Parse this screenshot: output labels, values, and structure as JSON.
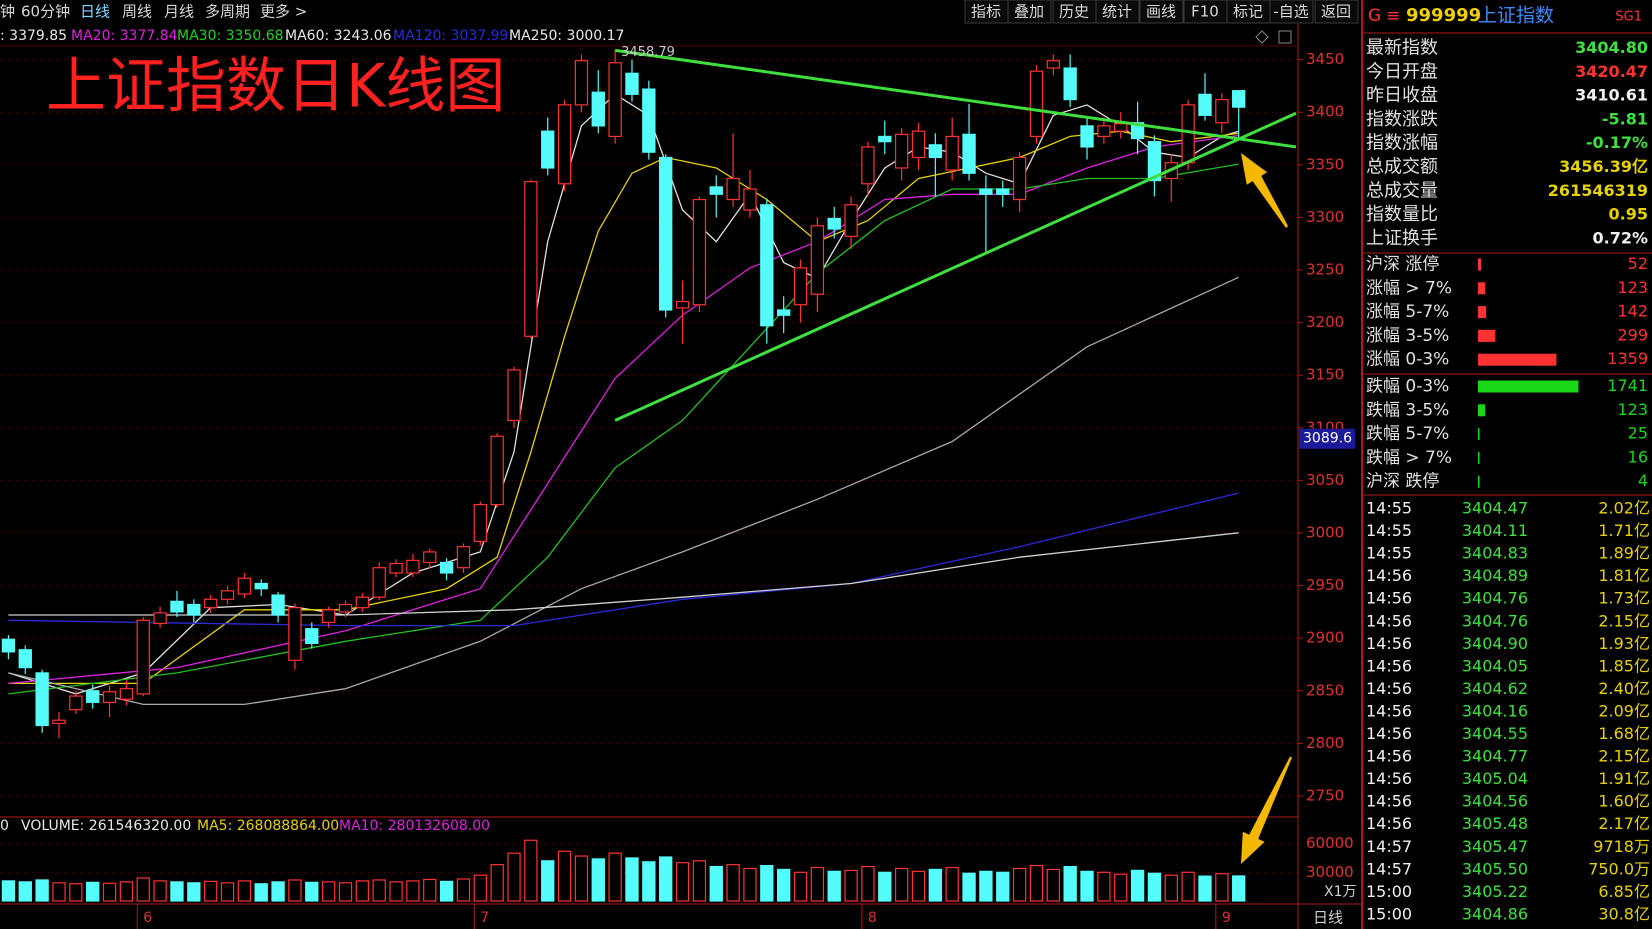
{
  "toolbar": {
    "left": [
      "钟",
      "60分钟",
      "日线",
      "周线",
      "月线",
      "多周期",
      "更多 >"
    ],
    "right": [
      "指标",
      "叠加",
      "历史",
      "统计",
      "画线",
      "F10",
      "标记",
      "-自选",
      "返回"
    ]
  },
  "chart_data": {
    "type": "candlestick",
    "title": "上证指数日K线图",
    "ma_legend": [
      {
        "text": ": 3379.85",
        "color": "#e8e8e8"
      },
      {
        "text": "MA20: 3377.84",
        "color": "#e020e0"
      },
      {
        "text": "MA30: 3350.68",
        "color": "#20d020"
      },
      {
        "text": "MA60: 3243.06",
        "color": "#e8e8e8"
      },
      {
        "text": "MA120: 3037.99",
        "color": "#2a2ad8"
      },
      {
        "text": "MA250: 3000.17",
        "color": "#e8e8e8"
      }
    ],
    "categories": [
      null,
      null,
      null,
      null,
      null,
      null,
      null,
      null,
      "6",
      null,
      null,
      null,
      null,
      null,
      null,
      null,
      null,
      null,
      null,
      null,
      null,
      null,
      null,
      null,
      null,
      null,
      null,
      null,
      "7",
      null,
      null,
      null,
      null,
      null,
      null,
      null,
      null,
      null,
      null,
      null,
      null,
      null,
      null,
      null,
      null,
      null,
      null,
      null,
      null,
      null,
      null,
      "8",
      null,
      null,
      null,
      null,
      null,
      null,
      null,
      null,
      null,
      null,
      null,
      null,
      null,
      null,
      null,
      null,
      null,
      null,
      null,
      null,
      "9",
      null
    ],
    "open": [
      2899,
      2889,
      2867,
      2819,
      2832,
      2850,
      2839,
      2842,
      2847,
      2914,
      2935,
      2932,
      2929,
      2937,
      2942,
      2952,
      2941,
      2879,
      2909,
      2915,
      2925,
      2929,
      2939,
      2962,
      2962,
      2972,
      2972,
      2967,
      2992,
      3027,
      3107,
      3187,
      3382,
      3332,
      3407,
      3419,
      3377,
      3437,
      3422,
      3357,
      3214,
      3217,
      3329,
      3317,
      3307,
      3312,
      3212,
      3217,
      3227,
      3299,
      3282,
      3332,
      3377,
      3347,
      3357,
      3369,
      3345,
      3379,
      3327,
      3327,
      3317,
      3377,
      3442,
      3442,
      3387,
      3377,
      3382,
      3390,
      3372,
      3337,
      3352,
      3417,
      3390,
      3420.47
    ],
    "high": [
      2903,
      2893,
      2870,
      2830,
      2850,
      2856,
      2855,
      2860,
      2920,
      2930,
      2945,
      2937,
      2941,
      2950,
      2962,
      2956,
      2944,
      2933,
      2915,
      2930,
      2936,
      2943,
      2972,
      2975,
      2980,
      2985,
      2976,
      2990,
      3030,
      3095,
      3158,
      3336,
      3395,
      3412,
      3455,
      3440,
      3458.79,
      3450,
      3430,
      3360,
      3240,
      3320,
      3340,
      3380,
      3345,
      3318,
      3225,
      3260,
      3300,
      3310,
      3320,
      3372,
      3392,
      3385,
      3390,
      3380,
      3395,
      3408,
      3340,
      3335,
      3362,
      3445,
      3455,
      3455,
      3395,
      3395,
      3400,
      3410,
      3378,
      3360,
      3412,
      3437,
      3418,
      3421
    ],
    "low": [
      2880,
      2866,
      2810,
      2805,
      2828,
      2833,
      2825,
      2836,
      2845,
      2910,
      2920,
      2915,
      2924,
      2932,
      2938,
      2940,
      2915,
      2870,
      2890,
      2910,
      2920,
      2925,
      2936,
      2958,
      2958,
      2966,
      2955,
      2962,
      2988,
      3024,
      3100,
      3185,
      3340,
      3325,
      3400,
      3380,
      3370,
      3410,
      3355,
      3205,
      3180,
      3210,
      3300,
      3310,
      3300,
      3180,
      3190,
      3200,
      3210,
      3280,
      3270,
      3320,
      3360,
      3335,
      3345,
      3320,
      3335,
      3335,
      3265,
      3310,
      3305,
      3370,
      3435,
      3405,
      3355,
      3370,
      3375,
      3360,
      3320,
      3315,
      3345,
      3392,
      3380,
      3376
    ],
    "close": [
      2887,
      2872,
      2817,
      2822,
      2845,
      2839,
      2849,
      2852,
      2917,
      2924,
      2925,
      2922,
      2937,
      2945,
      2957,
      2947,
      2922,
      2929,
      2895,
      2927,
      2932,
      2939,
      2967,
      2971,
      2974,
      2982,
      2962,
      2987,
      3027,
      3092,
      3155,
      3334,
      3347,
      3407,
      3449,
      3387,
      3447,
      3417,
      3362,
      3212,
      3220,
      3317,
      3322,
      3337,
      3327,
      3197,
      3207,
      3252,
      3292,
      3289,
      3312,
      3367,
      3372,
      3379,
      3382,
      3357,
      3377,
      3342,
      3322,
      3322,
      3357,
      3439,
      3449,
      3412,
      3367,
      3387,
      3389,
      3375,
      3335,
      3352,
      3407,
      3397,
      3412,
      3404.8
    ],
    "up_color": "#ff3232",
    "down_color": "#54fcfc",
    "ylim": [
      2730,
      3462
    ],
    "yticks": [
      2750,
      2800,
      2850,
      2900,
      2950,
      3000,
      3050,
      3100,
      3150,
      3200,
      3250,
      3300,
      3350,
      3400,
      3450
    ],
    "grid": true,
    "cursor_value": 3089.6,
    "lines": [
      {
        "color": "#e0e0e0",
        "x": [
          0,
          4,
          8,
          12,
          16,
          20,
          24,
          28,
          30,
          32,
          34,
          36,
          38,
          40,
          42,
          44,
          46,
          48,
          50,
          52,
          54,
          56,
          58,
          60,
          62,
          64,
          66,
          68,
          70,
          72,
          73
        ],
        "values": [
          2867,
          2847,
          2867,
          2929,
          2932,
          2922,
          2962,
          2982,
          3077,
          3277,
          3387,
          3417,
          3397,
          3307,
          3277,
          3322,
          3257,
          3242,
          3297,
          3347,
          3367,
          3362,
          3342,
          3332,
          3397,
          3407,
          3387,
          3362,
          3357,
          3377,
          3382
        ]
      },
      {
        "color": "#e6d200",
        "x": [
          0,
          8,
          14,
          20,
          26,
          29,
          31,
          33,
          35,
          37,
          39,
          42,
          45,
          48,
          51,
          54,
          57,
          60,
          63,
          66,
          69,
          73
        ],
        "values": [
          2857,
          2857,
          2927,
          2927,
          2947,
          2977,
          3077,
          3187,
          3287,
          3342,
          3357,
          3347,
          3317,
          3277,
          3297,
          3337,
          3347,
          3357,
          3377,
          3382,
          3372,
          3379.85
        ]
      },
      {
        "color": "#e020e0",
        "x": [
          0,
          10,
          20,
          28,
          32,
          36,
          40,
          44,
          48,
          52,
          56,
          60,
          64,
          68,
          73
        ],
        "values": [
          2857,
          2872,
          2907,
          2947,
          3047,
          3147,
          3207,
          3252,
          3277,
          3317,
          3322,
          3322,
          3347,
          3367,
          3377.84
        ]
      },
      {
        "color": "#20c020",
        "x": [
          0,
          10,
          20,
          28,
          32,
          36,
          40,
          44,
          48,
          52,
          56,
          60,
          64,
          68,
          73
        ],
        "values": [
          2847,
          2867,
          2897,
          2917,
          2977,
          3062,
          3107,
          3177,
          3247,
          3297,
          3327,
          3327,
          3337,
          3337,
          3350.68
        ]
      },
      {
        "color": "#a8a8a8",
        "x": [
          0,
          8,
          14,
          20,
          28,
          34,
          40,
          48,
          56,
          64,
          73
        ],
        "values": [
          2867,
          2837,
          2837,
          2852,
          2897,
          2947,
          2982,
          3032,
          3087,
          3177,
          3243.06
        ]
      },
      {
        "color": "#2a2ad8",
        "x": [
          0,
          20,
          30,
          40,
          50,
          60,
          73
        ],
        "values": [
          2917,
          2912,
          2912,
          2937,
          2952,
          2987,
          3037.99
        ]
      },
      {
        "color": "#d0d0d0",
        "x": [
          0,
          20,
          30,
          40,
          50,
          60,
          73
        ],
        "values": [
          2922,
          2922,
          2927,
          2939,
          2952,
          2977,
          3000.17
        ]
      }
    ],
    "trendlines": [
      {
        "color": "#3ee03e",
        "x": [
          36,
          76.4
        ],
        "values": [
          3458.79,
          3367
        ]
      },
      {
        "color": "#3ee03e",
        "x": [
          36,
          76.4
        ],
        "values": [
          3107,
          3399
        ]
      }
    ],
    "volume": {
      "legend": [
        {
          "text": "0",
          "color": "#e8e8e8"
        },
        {
          "text": "VOLUME: 261546320.00",
          "color": "#e8e8e8"
        },
        {
          "text": "MA5: 268088864.00",
          "color": "#e6d200"
        },
        {
          "text": "MA10: 280132608.00",
          "color": "#e020e0"
        }
      ],
      "values": [
        21000,
        20000,
        22000,
        19000,
        18000,
        19500,
        18500,
        20000,
        24000,
        21000,
        20000,
        19000,
        20500,
        19000,
        21000,
        18000,
        20000,
        22000,
        19500,
        20000,
        19000,
        21000,
        22000,
        20000,
        21000,
        22500,
        20500,
        23000,
        27000,
        38000,
        50000,
        63500,
        42000,
        52000,
        47000,
        44000,
        50000,
        45000,
        41000,
        46000,
        40000,
        42000,
        36000,
        38000,
        34000,
        37000,
        33000,
        30000,
        35000,
        31000,
        32000,
        36000,
        30000,
        34000,
        31000,
        33000,
        35000,
        29000,
        31000,
        30000,
        34000,
        37000,
        33000,
        36000,
        31000,
        30000,
        28000,
        32000,
        29000,
        27000,
        30000,
        26000,
        28500,
        26155
      ],
      "ylim": [
        0,
        92000
      ],
      "yticks": [
        30000,
        60000
      ],
      "unit_label": "X1万"
    },
    "period_label": "日线"
  },
  "quote_panel": {
    "header": {
      "prefix": "G",
      "menu": "≡",
      "code": "999999",
      "name": "上证指数",
      "tag": "SG1"
    },
    "stats": [
      {
        "label": "最新指数",
        "value": "3404.80",
        "color": "#3ee03e"
      },
      {
        "label": "今日开盘",
        "value": "3420.47",
        "color": "#ff3232"
      },
      {
        "label": "昨日收盘",
        "value": "3410.61",
        "color": "#f0f0f0"
      },
      {
        "label": "指数涨跌",
        "value": "-5.81",
        "color": "#3ee03e"
      },
      {
        "label": "指数涨幅",
        "value": "-0.17%",
        "color": "#3ee03e"
      },
      {
        "label": "总成交额",
        "value": "3456.39亿",
        "color": "#e6d200"
      },
      {
        "label": "总成交量",
        "value": "261546319",
        "color": "#e6d200"
      },
      {
        "label": "指数量比",
        "value": "0.95",
        "color": "#e6d200"
      },
      {
        "label": "上证换手",
        "value": "0.72%",
        "color": "#f0f0f0"
      }
    ],
    "distribution": {
      "up": [
        {
          "label": "沪深 涨停",
          "count": 52
        },
        {
          "label": "涨幅 > 7%",
          "count": 123
        },
        {
          "label": "涨幅 5-7%",
          "count": 142
        },
        {
          "label": "涨幅 3-5%",
          "count": 299
        },
        {
          "label": "涨幅 0-3%",
          "count": 1359
        }
      ],
      "down": [
        {
          "label": "跌幅 0-3%",
          "count": 1741
        },
        {
          "label": "跌幅 3-5%",
          "count": 123
        },
        {
          "label": "跌幅 5-7%",
          "count": 25
        },
        {
          "label": "跌幅 > 7%",
          "count": 16
        },
        {
          "label": "沪深 跌停",
          "count": 4
        }
      ]
    },
    "ticks": [
      [
        "14:55",
        "3404.47",
        "2.02亿"
      ],
      [
        "14:55",
        "3404.11",
        "1.71亿"
      ],
      [
        "14:55",
        "3404.83",
        "1.89亿"
      ],
      [
        "14:56",
        "3404.89",
        "1.81亿"
      ],
      [
        "14:56",
        "3404.76",
        "1.73亿"
      ],
      [
        "14:56",
        "3404.76",
        "2.15亿"
      ],
      [
        "14:56",
        "3404.90",
        "1.93亿"
      ],
      [
        "14:56",
        "3404.05",
        "1.85亿"
      ],
      [
        "14:56",
        "3404.62",
        "2.40亿"
      ],
      [
        "14:56",
        "3404.16",
        "2.09亿"
      ],
      [
        "14:56",
        "3404.55",
        "1.68亿"
      ],
      [
        "14:56",
        "3404.77",
        "2.15亿"
      ],
      [
        "14:56",
        "3405.04",
        "1.91亿"
      ],
      [
        "14:56",
        "3404.56",
        "1.60亿"
      ],
      [
        "14:56",
        "3405.48",
        "2.17亿"
      ],
      [
        "14:57",
        "3405.47",
        "9718万"
      ],
      [
        "14:57",
        "3405.50",
        "750.0万"
      ],
      [
        "15:00",
        "3405.22",
        "6.85亿"
      ],
      [
        "15:00",
        "3404.86",
        "30.8亿"
      ]
    ]
  }
}
